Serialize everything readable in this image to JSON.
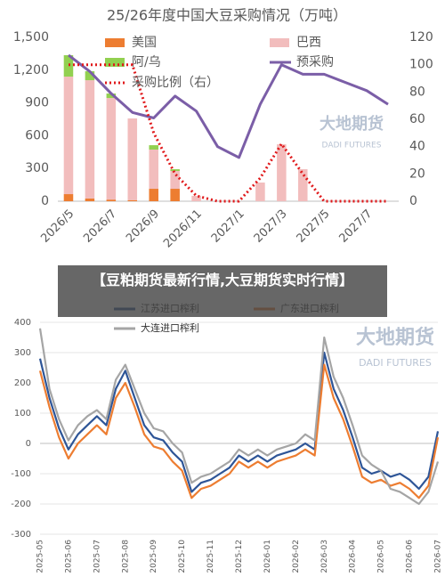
{
  "chart_data": [
    {
      "type": "bar",
      "title": "25/26年度中国大豆采购情况（万吨）",
      "categories": [
        "2026/5",
        null,
        "2026/7",
        null,
        "2026/9",
        null,
        "2026/11",
        null,
        "2027/1",
        null,
        "2027/3",
        null,
        "2027/5",
        null,
        "2027/7",
        null
      ],
      "series": [
        {
          "name": "美国",
          "type": "bar",
          "color": "#ed7d31",
          "values": [
            65,
            25,
            15,
            10,
            114,
            114,
            0,
            0,
            0,
            0,
            0,
            0,
            0,
            0,
            0,
            0
          ]
        },
        {
          "name": "巴西",
          "type": "bar",
          "color": "#f2bdbd",
          "values": [
            1076,
            1083,
            930,
            748,
            359,
            163,
            49,
            0,
            0,
            171,
            521,
            293,
            0,
            0,
            0,
            0
          ]
        },
        {
          "name": "阿/乌",
          "type": "bar",
          "color": "#92d050",
          "values": [
            196,
            82,
            41,
            0,
            40,
            16,
            0,
            0,
            0,
            0,
            0,
            0,
            0,
            0,
            0,
            0
          ]
        },
        {
          "name": "预采购",
          "type": "line",
          "axis": "y2",
          "color": "#7b5ea7",
          "style": "solid",
          "values": [
            107,
            95,
            79,
            65,
            61,
            77,
            66,
            40,
            32,
            71,
            100,
            93,
            93,
            87,
            81,
            71
          ]
        },
        {
          "name": "采购比例（右）",
          "type": "line",
          "axis": "y2",
          "color": "#e0191b",
          "style": "dotted",
          "values": [
            100,
            100,
            100,
            100,
            50,
            20,
            4,
            0,
            0,
            17,
            42,
            20,
            0,
            0,
            0,
            0
          ]
        }
      ],
      "ylim": [
        0,
        1500
      ],
      "yticks": [
        0,
        300,
        600,
        900,
        {
          "value": 1200,
          "label": "1,200"
        },
        {
          "value": 1500,
          "label": "1,500"
        }
      ],
      "y2lim": [
        0,
        120
      ],
      "y2ticks": [
        0,
        20,
        40,
        60,
        80,
        100,
        120
      ],
      "grid": false
    },
    {
      "type": "line",
      "categories": [
        "2025-05",
        null,
        null,
        "2025-06",
        null,
        null,
        "2025-07",
        null,
        null,
        "2025-08",
        null,
        null,
        "2025-09",
        null,
        null,
        "2025-10",
        null,
        null,
        "2025-11",
        null,
        null,
        "2025-12",
        null,
        null,
        "2026-01",
        null,
        null,
        "2026-02",
        null,
        null,
        "2026-03",
        null,
        null,
        "2026-04",
        null,
        null,
        "2026-05",
        null,
        null,
        "2026-06",
        null,
        null,
        "2026-07"
      ],
      "series": [
        {
          "name": "江苏进口榨利",
          "color": "#2e5597",
          "values": [
            280,
            150,
            50,
            -20,
            30,
            60,
            90,
            60,
            180,
            240,
            150,
            60,
            20,
            10,
            -30,
            -60,
            -160,
            -130,
            -120,
            -100,
            -80,
            -40,
            -60,
            -40,
            -60,
            -40,
            -30,
            -20,
            0,
            -20,
            300,
            180,
            110,
            20,
            -80,
            -100,
            -90,
            -110,
            -100,
            -120,
            -150,
            -110,
            40
          ]
        },
        {
          "name": "广东进口榨利",
          "color": "#ed7d31",
          "values": [
            240,
            120,
            20,
            -50,
            0,
            30,
            60,
            30,
            150,
            200,
            120,
            30,
            -10,
            -20,
            -60,
            -90,
            -180,
            -150,
            -140,
            -120,
            -100,
            -60,
            -80,
            -60,
            -80,
            -60,
            -50,
            -40,
            -20,
            -40,
            260,
            150,
            80,
            -10,
            -110,
            -130,
            -120,
            -140,
            -130,
            -150,
            -180,
            -140,
            20
          ]
        },
        {
          "name": "大连进口榨利",
          "color": "#a5a5a5",
          "values": [
            380,
            180,
            80,
            10,
            60,
            90,
            110,
            80,
            210,
            260,
            180,
            100,
            50,
            40,
            0,
            -30,
            -130,
            -110,
            -100,
            -80,
            -60,
            -20,
            -40,
            -20,
            -40,
            -20,
            -10,
            0,
            30,
            10,
            350,
            220,
            150,
            60,
            -40,
            -70,
            -90,
            -150,
            -160,
            -180,
            -200,
            -160,
            -60
          ]
        }
      ],
      "ylim": [
        -300,
        400
      ],
      "yticks": [
        -300,
        -200,
        -100,
        0,
        100,
        200,
        300,
        400
      ],
      "grid": true
    }
  ],
  "caption": "【豆粕期货最新行情,大豆期货实时行情】",
  "watermark": {
    "cn": "大地期货",
    "en": "DADI FUTURES"
  }
}
